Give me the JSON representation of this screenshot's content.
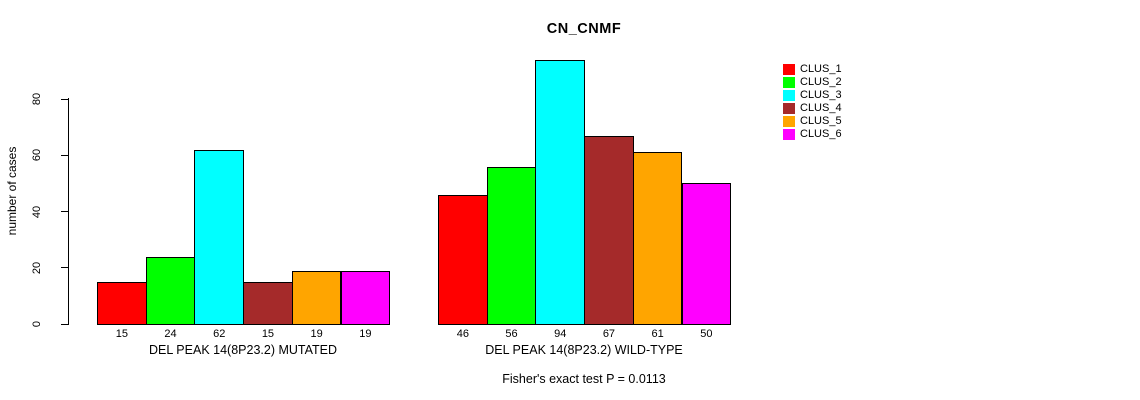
{
  "chart_data": {
    "type": "bar",
    "title": "CN_CNMF",
    "ylabel": "number of cases",
    "ylim": [
      0,
      94
    ],
    "yticks": [
      0,
      20,
      40,
      60,
      80
    ],
    "grid": false,
    "legend_position": "right",
    "clusters": [
      {
        "name": "CLUS_1",
        "color": "#ff0000"
      },
      {
        "name": "CLUS_2",
        "color": "#00ff00"
      },
      {
        "name": "CLUS_3",
        "color": "#00ffff"
      },
      {
        "name": "CLUS_4",
        "color": "#a52a2a"
      },
      {
        "name": "CLUS_5",
        "color": "#ffa500"
      },
      {
        "name": "CLUS_6",
        "color": "#ff00ff"
      }
    ],
    "groups": [
      {
        "label": "DEL PEAK 14(8P23.2) MUTATED",
        "values": [
          15,
          24,
          62,
          15,
          19,
          19
        ]
      },
      {
        "label": "DEL PEAK 14(8P23.2) WILD-TYPE",
        "values": [
          46,
          56,
          94,
          67,
          61,
          50
        ]
      }
    ],
    "footnote": "Fisher's exact test P = 0.0113"
  }
}
